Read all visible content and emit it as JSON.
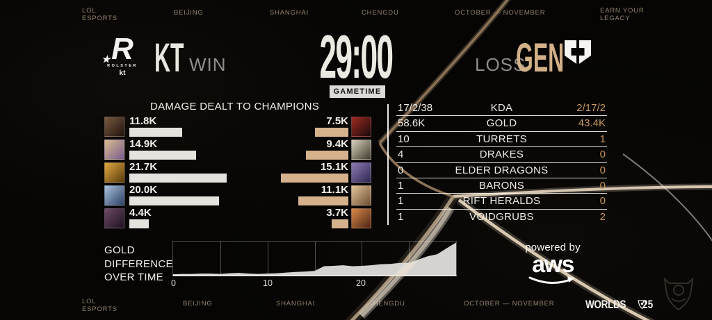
{
  "colors": {
    "background": "#060504",
    "accent_tan": "#c6985e",
    "left_team_bar": "#e6e3de",
    "right_team_bar": "#d6b28c",
    "beam": "#a98c6a"
  },
  "top_bar": {
    "items": [
      "LOL\nESPORTS",
      "BEIJING",
      "SHANGHAI",
      "CHENGDU",
      "OCTOBER — NOVEMBER",
      "EARN YOUR\nLEGACY"
    ]
  },
  "scoreboard": {
    "left_team": {
      "name": "KT",
      "result": "WIN",
      "logo_letter": "R",
      "logo_star": "★",
      "logo_text": "ROLSTER",
      "logo_sub": "kt"
    },
    "clock": "29:00",
    "clock_label": "GAMETIME",
    "right_team": {
      "name": "GEN",
      "result": "LOSS"
    }
  },
  "damage_panel": {
    "title": "DAMAGE DEALT TO CHAMPIONS",
    "max_k": 21.7,
    "left": [
      {
        "value": "11.8K",
        "k": 11.8,
        "icon_colors": [
          "#7a5a42",
          "#20130d"
        ]
      },
      {
        "value": "14.9K",
        "k": 14.9,
        "icon_colors": [
          "#d8bd90",
          "#7b5c8e"
        ]
      },
      {
        "value": "21.7K",
        "k": 21.7,
        "icon_colors": [
          "#e0a93f",
          "#5a3c0e"
        ]
      },
      {
        "value": "20.0K",
        "k": 20.0,
        "icon_colors": [
          "#a9c2dc",
          "#2e4066"
        ]
      },
      {
        "value": "4.4K",
        "k": 4.4,
        "icon_colors": [
          "#6e4a66",
          "#1d1220"
        ]
      }
    ],
    "right": [
      {
        "value": "7.5K",
        "k": 7.5,
        "icon_colors": [
          "#9e2a22",
          "#190b0b"
        ]
      },
      {
        "value": "9.4K",
        "k": 9.4,
        "icon_colors": [
          "#d8d2bc",
          "#3f3a2e"
        ]
      },
      {
        "value": "15.1K",
        "k": 15.1,
        "icon_colors": [
          "#8d7bb4",
          "#2f2750"
        ]
      },
      {
        "value": "11.1K",
        "k": 11.1,
        "icon_colors": [
          "#e2c49a",
          "#6e4e33"
        ]
      },
      {
        "value": "3.7K",
        "k": 3.7,
        "icon_colors": [
          "#d98a4a",
          "#4e2413"
        ]
      }
    ]
  },
  "stats_table": {
    "rows": [
      {
        "left": "17/2/38",
        "label": "KDA",
        "right": "2/17/2"
      },
      {
        "left": "58.6K",
        "label": "GOLD",
        "right": "43.4K"
      },
      {
        "left": "10",
        "label": "TURRETS",
        "right": "1"
      },
      {
        "left": "4",
        "label": "DRAKES",
        "right": "0"
      },
      {
        "left": "0",
        "label": "ELDER DRAGONS",
        "right": "0"
      },
      {
        "left": "1",
        "label": "BARONS",
        "right": "0"
      },
      {
        "left": "1",
        "label": "RIFT HERALDS",
        "right": "0"
      },
      {
        "left": "1",
        "label": "VOIDGRUBS",
        "right": "2"
      }
    ]
  },
  "chart_data": {
    "type": "area",
    "title": "GOLD DIFFERENCE OVER TIME",
    "title_lines": "GOLD\nDIFFERENCE\nOVER TIME",
    "x_label_unit": "minutes",
    "x_range": [
      0,
      30
    ],
    "x_minutes": [
      0,
      1,
      2,
      3,
      4,
      5,
      6,
      7,
      8,
      9,
      10,
      11,
      12,
      13,
      14,
      15,
      16,
      17,
      18,
      19,
      20,
      21,
      22,
      23,
      24,
      25,
      26,
      27,
      28,
      29,
      30
    ],
    "values_pct_of_max": [
      2,
      3,
      3,
      4,
      4,
      3,
      5,
      6,
      4,
      3,
      4,
      5,
      7,
      9,
      10,
      12,
      26,
      27,
      29,
      26,
      27,
      29,
      32,
      33,
      36,
      36,
      46,
      56,
      62,
      80,
      97
    ],
    "x_ticks": [
      {
        "label": "0"
      },
      {
        "label": "10"
      },
      {
        "label": "20"
      }
    ],
    "gridline_every_min": 5,
    "fill": "#d5d3d0",
    "legend": "none",
    "grid": "vertical"
  },
  "sponsor": {
    "powered_by": "powered by",
    "brand": "aws"
  },
  "footer": {
    "items": [
      "LOL\nESPORTS",
      "BEIJING",
      "SHANGHAI",
      "CHENGDU",
      "OCTOBER — NOVEMBER"
    ],
    "worlds": "WORLDS",
    "year": "25"
  }
}
